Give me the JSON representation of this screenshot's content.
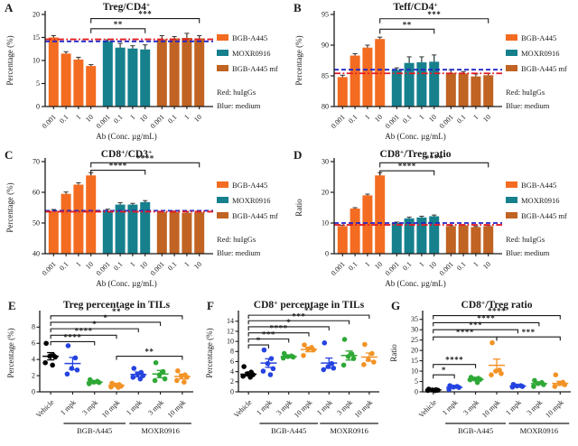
{
  "legend": {
    "items": [
      {
        "label": "BGB-A445",
        "color": "#F36C21"
      },
      {
        "label": "MOXR0916",
        "color": "#16808D"
      },
      {
        "label": "BGB-A445 mf",
        "color": "#C06323"
      }
    ],
    "notes": [
      "Red: huIgGs",
      "Blue: medium"
    ]
  },
  "colors": {
    "orange": "#F36C21",
    "teal": "#16808D",
    "brown": "#C06323",
    "ref_red": "#E31B23",
    "ref_blue": "#2026C8",
    "dot_black": "#000000",
    "dot_blue": "#2443E0",
    "dot_green": "#2EA836",
    "dot_orange": "#F39326"
  },
  "chart_data": [
    {
      "panel": "A",
      "type": "bar",
      "title": [
        {
          "t": "Treg/CD4"
        },
        {
          "t": "+",
          "sup": true
        }
      ],
      "ylabel": "Percentage (%)",
      "xlabel": "Ab (Conc. µg/mL)",
      "ylim": [
        0,
        20
      ],
      "yticks": [
        0,
        5,
        10,
        15,
        20
      ],
      "xticklabels": [
        "0.001",
        "0.1",
        "1",
        "10"
      ],
      "series": [
        {
          "name": "BGB-A445",
          "color": "#F36C21",
          "values": [
            15.0,
            11.5,
            10.2,
            8.8
          ],
          "errors": [
            0.4,
            0.4,
            0.5,
            0.3
          ]
        },
        {
          "name": "MOXR0916",
          "color": "#16808D",
          "values": [
            14.2,
            12.8,
            12.6,
            12.4
          ],
          "errors": [
            0.3,
            0.9,
            0.6,
            1.0
          ]
        },
        {
          "name": "BGB-A445 mf",
          "color": "#C06323",
          "values": [
            14.6,
            14.8,
            14.9,
            14.8
          ],
          "errors": [
            0.8,
            0.4,
            1.0,
            0.6
          ]
        }
      ],
      "ref_lines": [
        {
          "name": "huIgGs",
          "color": "#E31B23",
          "y": 14.6,
          "style": "dashdot"
        },
        {
          "name": "medium",
          "color": "#2026C8",
          "y": 14.15,
          "style": "dash"
        }
      ],
      "brackets": [
        {
          "from": [
            0,
            3
          ],
          "to": [
            1,
            3
          ],
          "y": 16.9,
          "label": "**"
        },
        {
          "from": [
            0,
            3
          ],
          "to": [
            2,
            3
          ],
          "y": 19.1,
          "label": "***"
        }
      ],
      "legend": true
    },
    {
      "panel": "B",
      "type": "bar",
      "title": [
        {
          "t": "Teff/CD4"
        },
        {
          "t": "+",
          "sup": true
        }
      ],
      "ylabel": "Percentage (%)",
      "xlabel": "Ab (Conc. µg/mL)",
      "ylim": [
        80,
        95
      ],
      "yticks": [
        80,
        85,
        90,
        95
      ],
      "xticklabels": [
        "0.001",
        "0.1",
        "1",
        "10"
      ],
      "series": [
        {
          "name": "BGB-A445",
          "color": "#F36C21",
          "values": [
            84.8,
            88.3,
            89.6,
            91.0
          ],
          "errors": [
            0.3,
            0.3,
            0.4,
            0.3
          ]
        },
        {
          "name": "MOXR0916",
          "color": "#16808D",
          "values": [
            86.0,
            87.1,
            87.2,
            87.3
          ],
          "errors": [
            0.3,
            1.0,
            0.9,
            1.1
          ]
        },
        {
          "name": "BGB-A445 mf",
          "color": "#C06323",
          "values": [
            85.5,
            85.4,
            84.9,
            85.1
          ],
          "errors": [
            0.5,
            0.3,
            0.4,
            0.3
          ]
        }
      ],
      "ref_lines": [
        {
          "name": "medium",
          "color": "#2026C8",
          "y": 86.0,
          "style": "dash"
        },
        {
          "name": "huIgGs",
          "color": "#E31B23",
          "y": 85.4,
          "style": "dashdot"
        }
      ],
      "brackets": [
        {
          "from": [
            0,
            3
          ],
          "to": [
            1,
            3
          ],
          "y": 92.6,
          "label": "**"
        },
        {
          "from": [
            0,
            3
          ],
          "to": [
            2,
            3
          ],
          "y": 94.3,
          "label": "***"
        }
      ],
      "legend": true
    },
    {
      "panel": "C",
      "type": "bar",
      "title": [
        {
          "t": "CD8"
        },
        {
          "t": "+",
          "sup": true
        },
        {
          "t": "/CD3"
        },
        {
          "t": "+",
          "sup": true
        }
      ],
      "ylabel": "Percentage (%)",
      "xlabel": "Ab (Conc. µg/mL)",
      "ylim": [
        40,
        70
      ],
      "yticks": [
        40,
        50,
        60,
        70
      ],
      "xticklabels": [
        "0.001",
        "0.1",
        "1",
        "10"
      ],
      "series": [
        {
          "name": "BGB-A445",
          "color": "#F36C21",
          "values": [
            54.0,
            59.5,
            62.5,
            65.5
          ],
          "errors": [
            0.4,
            0.6,
            0.6,
            0.9
          ]
        },
        {
          "name": "MOXR0916",
          "color": "#16808D",
          "values": [
            54.0,
            56.0,
            56.0,
            56.8
          ],
          "errors": [
            0.5,
            0.6,
            0.4,
            0.5
          ]
        },
        {
          "name": "BGB-A445 mf",
          "color": "#C06323",
          "values": [
            53.5,
            53.6,
            53.3,
            53.5
          ],
          "errors": [
            0.3,
            0.3,
            0.3,
            0.3
          ]
        }
      ],
      "ref_lines": [
        {
          "name": "medium",
          "color": "#2026C8",
          "y": 54.0,
          "style": "dash"
        },
        {
          "name": "huIgGs",
          "color": "#E31B23",
          "y": 53.7,
          "style": "dashdot"
        }
      ],
      "brackets": [
        {
          "from": [
            0,
            3
          ],
          "to": [
            1,
            3
          ],
          "y": 67.2,
          "label": "****"
        },
        {
          "from": [
            0,
            3
          ],
          "to": [
            2,
            3
          ],
          "y": 69.6,
          "label": "****"
        }
      ],
      "legend": true
    },
    {
      "panel": "D",
      "type": "bar",
      "title": [
        {
          "t": "CD8"
        },
        {
          "t": "+",
          "sup": true
        },
        {
          "t": "/Treg ratio"
        }
      ],
      "ylabel": "Ratio",
      "xlabel": "Ab (Conc. µg/mL)",
      "ylim": [
        0,
        30
      ],
      "yticks": [
        0,
        10,
        20,
        30
      ],
      "xticklabels": [
        "0.001",
        "0.1",
        "1",
        "10"
      ],
      "series": [
        {
          "name": "BGB-A445",
          "color": "#F36C21",
          "values": [
            9.0,
            14.7,
            19.0,
            25.5
          ],
          "errors": [
            0.3,
            0.3,
            0.4,
            0.9
          ]
        },
        {
          "name": "MOXR0916",
          "color": "#16808D",
          "values": [
            10.0,
            11.5,
            11.8,
            12.2
          ],
          "errors": [
            0.3,
            0.4,
            0.4,
            0.4
          ]
        },
        {
          "name": "BGB-A445 mf",
          "color": "#C06323",
          "values": [
            9.0,
            9.2,
            8.7,
            9.0
          ],
          "errors": [
            0.2,
            0.2,
            0.2,
            0.2
          ]
        }
      ],
      "ref_lines": [
        {
          "name": "medium",
          "color": "#2026C8",
          "y": 10.0,
          "style": "dash"
        },
        {
          "name": "huIgGs",
          "color": "#E31B23",
          "y": 9.4,
          "style": "dashdot"
        }
      ],
      "brackets": [
        {
          "from": [
            0,
            3
          ],
          "to": [
            1,
            3
          ],
          "y": 27.0,
          "label": "****"
        },
        {
          "from": [
            0,
            3
          ],
          "to": [
            2,
            3
          ],
          "y": 29.6,
          "label": "****"
        }
      ],
      "legend": true
    },
    {
      "panel": "E",
      "type": "scatter",
      "title": [
        {
          "t": "Treg percentage in TILs"
        }
      ],
      "ylabel": "Percentage (%)",
      "ylim": [
        0,
        9.6
      ],
      "yticks": [
        0,
        2,
        4,
        6,
        8
      ],
      "categories": [
        "Vehicle",
        "1 mpk",
        "3 mpk",
        "10 mpk",
        "1 mpk",
        "3 mpk",
        "10 mpk"
      ],
      "point_colors": [
        "#000000",
        "#2443E0",
        "#2EA836",
        "#F39326",
        "#2443E0",
        "#2EA836",
        "#F39326"
      ],
      "groups": [
        {
          "values": [
            6.0,
            4.5,
            4.4,
            4.3,
            3.6,
            3.3
          ],
          "mean": 4.4,
          "err": 0.45
        },
        {
          "values": [
            5.7,
            4.2,
            2.9,
            2.7,
            2.2
          ],
          "mean": 3.5,
          "err": 0.75
        },
        {
          "values": [
            1.5,
            1.3,
            1.2,
            1.15,
            1.0
          ],
          "mean": 1.2,
          "err": 0.15
        },
        {
          "values": [
            1.05,
            0.9,
            0.85,
            0.7,
            0.6,
            0.55
          ],
          "mean": 0.8,
          "err": 0.1
        },
        {
          "values": [
            2.9,
            2.4,
            2.2,
            2.0,
            1.8,
            1.6
          ],
          "mean": 2.15,
          "err": 0.3
        },
        {
          "values": [
            3.6,
            2.5,
            2.1,
            1.6,
            1.4
          ],
          "mean": 2.2,
          "err": 0.45
        },
        {
          "values": [
            2.6,
            2.1,
            1.95,
            1.8,
            1.4,
            1.2
          ],
          "mean": 1.9,
          "err": 0.3
        }
      ],
      "group_labels": [
        {
          "label": "BGB-A445",
          "from": 1,
          "to": 3
        },
        {
          "label": "MOXR0916",
          "from": 4,
          "to": 6
        }
      ],
      "brackets": [
        {
          "from": 0,
          "to": 2,
          "y": 6.2,
          "label": "****"
        },
        {
          "from": 0,
          "to": 3,
          "y": 7.0,
          "label": "****"
        },
        {
          "from": 0,
          "to": 4,
          "y": 7.8,
          "label": "*"
        },
        {
          "from": 0,
          "to": 5,
          "y": 8.6,
          "label": "*"
        },
        {
          "from": 0,
          "to": 6,
          "y": 9.4,
          "label": "**"
        },
        {
          "from": 3,
          "to": 6,
          "y": 4.4,
          "label": "**"
        }
      ]
    },
    {
      "panel": "F",
      "type": "scatter",
      "title": [
        {
          "t": "CD8"
        },
        {
          "t": "+",
          "sup": true
        },
        {
          "t": " percentage in TILs"
        }
      ],
      "ylabel": "Percentage (%)",
      "ylim": [
        0,
        15.4
      ],
      "yticks": [
        0,
        2,
        4,
        6,
        8,
        10,
        12,
        14
      ],
      "categories": [
        "Vehicle",
        "1 mpk",
        "3 mpk",
        "10 mpk",
        "1 mpk",
        "3 mpk",
        "10 mpk"
      ],
      "point_colors": [
        "#000000",
        "#2443E0",
        "#2EA836",
        "#F39326",
        "#2443E0",
        "#2EA836",
        "#F39326"
      ],
      "groups": [
        {
          "values": [
            5.0,
            3.9,
            3.6,
            3.4,
            3.1,
            2.9
          ],
          "mean": 3.5,
          "err": 0.35
        },
        {
          "values": [
            8.3,
            6.6,
            5.6,
            4.6,
            4.1,
            3.4
          ],
          "mean": 5.7,
          "err": 0.85
        },
        {
          "values": [
            7.6,
            7.1,
            7.0,
            6.9,
            6.7
          ],
          "mean": 7.0,
          "err": 0.2
        },
        {
          "values": [
            9.3,
            8.8,
            8.5,
            8.3,
            7.2
          ],
          "mean": 8.4,
          "err": 0.45
        },
        {
          "values": [
            9.7,
            5.6,
            5.0,
            4.7,
            4.4
          ],
          "mean": 5.7,
          "err": 1.0
        },
        {
          "values": [
            10.4,
            7.5,
            7.0,
            6.6,
            5.3
          ],
          "mean": 7.2,
          "err": 0.9
        },
        {
          "values": [
            9.4,
            7.6,
            6.4,
            5.9,
            5.4
          ],
          "mean": 6.9,
          "err": 0.8
        }
      ],
      "group_labels": [
        {
          "label": "BGB-A445",
          "from": 1,
          "to": 3
        },
        {
          "label": "MOXR0916",
          "from": 4,
          "to": 6
        }
      ],
      "brackets": [
        {
          "from": 0,
          "to": 1,
          "y": 9.3,
          "label": "*"
        },
        {
          "from": 0,
          "to": 2,
          "y": 10.5,
          "label": "***"
        },
        {
          "from": 0,
          "to": 3,
          "y": 11.7,
          "label": "****"
        },
        {
          "from": 0,
          "to": 4,
          "y": 12.9,
          "label": "*"
        },
        {
          "from": 0,
          "to": 5,
          "y": 14.1,
          "label": "***"
        },
        {
          "from": 0,
          "to": 6,
          "y": 15.2,
          "label": "**"
        }
      ]
    },
    {
      "panel": "G",
      "type": "scatter",
      "title": [
        {
          "t": "CD8"
        },
        {
          "t": "+",
          "sup": true
        },
        {
          "t": "/Treg ratio"
        }
      ],
      "ylabel": "Ratio",
      "ylim": [
        0,
        37.5
      ],
      "yticks": [
        0,
        5,
        10,
        15,
        20,
        25,
        30,
        35
      ],
      "categories": [
        "Vehicle",
        "1 mpk",
        "3 mpk",
        "10 mpk",
        "1 mpk",
        "3 mpk",
        "10 mpk"
      ],
      "point_colors": [
        "#000000",
        "#2443E0",
        "#2EA836",
        "#F39326",
        "#2443E0",
        "#2EA836",
        "#F39326"
      ],
      "groups": [
        {
          "values": [
            1.3,
            1.0,
            0.9,
            0.8,
            0.7,
            0.6
          ],
          "mean": 0.9,
          "err": 0.12
        },
        {
          "values": [
            3.0,
            2.6,
            2.3,
            2.1,
            1.2
          ],
          "mean": 2.2,
          "err": 0.3
        },
        {
          "values": [
            7.0,
            6.5,
            6.2,
            6.0,
            5.8,
            4.5
          ],
          "mean": 6.0,
          "err": 0.4
        },
        {
          "values": [
            23.7,
            10.5,
            10.0,
            8.8,
            8.2
          ],
          "mean": 12.8,
          "err": 3.0
        },
        {
          "values": [
            3.6,
            3.0,
            2.8,
            2.6,
            2.3
          ],
          "mean": 2.8,
          "err": 0.25
        },
        {
          "values": [
            5.5,
            4.5,
            4.0,
            3.5,
            2.6
          ],
          "mean": 4.0,
          "err": 0.5
        },
        {
          "values": [
            8.2,
            4.6,
            4.0,
            3.4,
            2.6
          ],
          "mean": 4.1,
          "err": 1.0
        }
      ],
      "group_labels": [
        {
          "label": "BGB-A445",
          "from": 1,
          "to": 3
        },
        {
          "label": "MOXR0916",
          "from": 4,
          "to": 6
        }
      ],
      "brackets": [
        {
          "from": 0,
          "to": 1,
          "y": 8.2,
          "label": "*"
        },
        {
          "from": 0,
          "to": 2,
          "y": 13.2,
          "label": "****"
        },
        {
          "from": 0,
          "to": 3,
          "y": 26.5,
          "label": "****"
        },
        {
          "from": 3,
          "to": 6,
          "y": 26.5,
          "label": "***"
        },
        {
          "from": 0,
          "to": 4,
          "y": 30.0,
          "label": "***"
        },
        {
          "from": 0,
          "to": 5,
          "y": 33.4,
          "label": "****"
        },
        {
          "from": 0,
          "to": 6,
          "y": 36.8,
          "label": "****"
        }
      ]
    }
  ]
}
